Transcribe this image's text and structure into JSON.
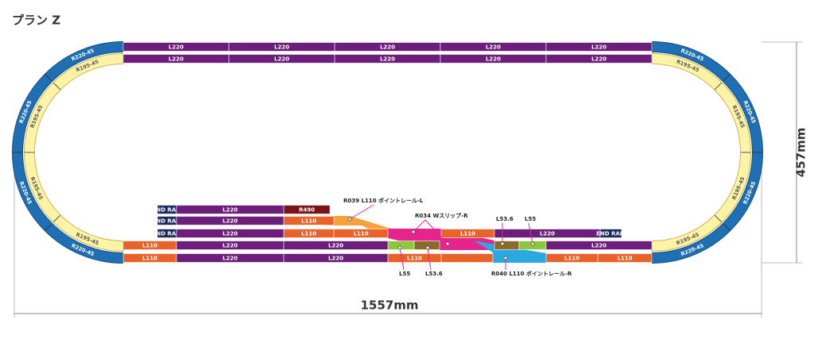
{
  "title": "プラン Z",
  "top_outer": [
    "L220",
    "L220",
    "L220",
    "L220",
    "L220"
  ],
  "top_inner": [
    "L220",
    "L220",
    "L220",
    "L220",
    "L220"
  ],
  "curves_outer_left": [
    "R220-45",
    "R220-45",
    "R220-45",
    "R220-45"
  ],
  "curves_inner_left": [
    "R195-45",
    "R195-45",
    "R195-45",
    "R195-45"
  ],
  "curves_outer_right": [
    "R220-45",
    "R220-45",
    "R220-45",
    "R220-45"
  ],
  "curves_inner_right": [
    "R195-45",
    "R195-45",
    "R195-45",
    "R195-45"
  ],
  "pieces": [
    {
      "label": "END RAIL"
    },
    {
      "label": "L220"
    },
    {
      "label": "R490"
    },
    {
      "label": "END RAIL"
    },
    {
      "label": "L220"
    },
    {
      "label": "L110"
    },
    {
      "label": "END RAIL"
    },
    {
      "label": "L220"
    },
    {
      "label": "L110"
    },
    {
      "label": "L110"
    },
    {
      "label": "L110"
    },
    {
      "label": "L220"
    },
    {
      "label": "END RAIL"
    },
    {
      "label": "L110"
    },
    {
      "label": "L220"
    },
    {
      "label": "L220"
    },
    {
      "label": "L220"
    },
    {
      "label": "L110"
    },
    {
      "label": "L220"
    },
    {
      "label": "L220"
    },
    {
      "label": "L110"
    },
    {
      "label": "L110"
    },
    {
      "label": "L110"
    }
  ],
  "annotations": [
    "R039 L110 ポイントレール-L",
    "R034 Wスリップ-R",
    "L53.6",
    "L55",
    "L55",
    "L53.6",
    "R040 L110 ポイントレール-R"
  ],
  "dimensions": {
    "height": "457mm",
    "width": "1557mm"
  }
}
